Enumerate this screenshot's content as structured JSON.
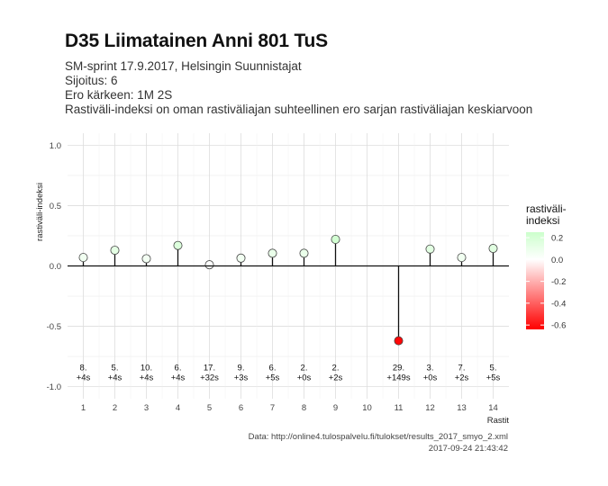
{
  "header": {
    "title": "D35 Liimatainen Anni 801 TuS",
    "subtitle_lines": [
      "SM-sprint 17.9.2017, Helsingin Suunnistajat",
      "Sijoitus: 6",
      "Ero kärkeen: 1M 2S",
      "Rastiväli-indeksi on oman rastiväliajan suhteellinen ero sarjan rastiväliajan keskiarvoon"
    ]
  },
  "caption": {
    "source": "Data: http://online4.tulospalvelu.fi/tulokset/results_2017_smyo_2.xml",
    "timestamp": "2017-09-24 21:43:42"
  },
  "chart_data": {
    "type": "scatter",
    "style": "lollipop",
    "xlabel": "Rastit",
    "ylabel": "rastiväli-indeksi",
    "xlim": [
      0.5,
      14.5
    ],
    "ylim": [
      -1.1,
      1.1
    ],
    "x_ticks": [
      1,
      2,
      3,
      4,
      5,
      6,
      7,
      8,
      9,
      10,
      11,
      12,
      13,
      14
    ],
    "y_ticks": [
      -1.0,
      -0.5,
      0.0,
      0.5,
      1.0
    ],
    "y_tick_labels": [
      "-1.0",
      "-0.5",
      "0.0",
      "0.5",
      "1.0"
    ],
    "grid": true,
    "legend": {
      "title": "rastiväli-\nindeksi",
      "placement": "right",
      "ticks": [
        0.2,
        0.0,
        -0.2,
        -0.4,
        -0.6
      ],
      "tick_labels": [
        "0.2",
        "0.0",
        "-0.2",
        "-0.4",
        "-0.6"
      ],
      "range": [
        -0.64,
        0.25
      ],
      "colors": {
        "low": "#ff0000",
        "mid": "#ffffff",
        "high": "#ccffcc"
      }
    },
    "points": [
      {
        "x": 1,
        "y": 0.07,
        "rank": "8.",
        "diff": "+4s"
      },
      {
        "x": 2,
        "y": 0.13,
        "rank": "5.",
        "diff": "+4s"
      },
      {
        "x": 3,
        "y": 0.06,
        "rank": "10.",
        "diff": "+4s"
      },
      {
        "x": 4,
        "y": 0.17,
        "rank": "6.",
        "diff": "+4s"
      },
      {
        "x": 5,
        "y": 0.01,
        "rank": "17.",
        "diff": "+32s"
      },
      {
        "x": 6,
        "y": 0.065,
        "rank": "9.",
        "diff": "+3s"
      },
      {
        "x": 7,
        "y": 0.105,
        "rank": "6.",
        "diff": "+5s"
      },
      {
        "x": 8,
        "y": 0.105,
        "rank": "2.",
        "diff": "+0s"
      },
      {
        "x": 9,
        "y": 0.22,
        "rank": "2.",
        "diff": "+2s"
      },
      {
        "x": 11,
        "y": -0.62,
        "rank": "29.",
        "diff": "+149s"
      },
      {
        "x": 12,
        "y": 0.14,
        "rank": "3.",
        "diff": "+0s"
      },
      {
        "x": 13,
        "y": 0.07,
        "rank": "7.",
        "diff": "+2s"
      },
      {
        "x": 14,
        "y": 0.145,
        "rank": "5.",
        "diff": "+5s"
      }
    ]
  }
}
